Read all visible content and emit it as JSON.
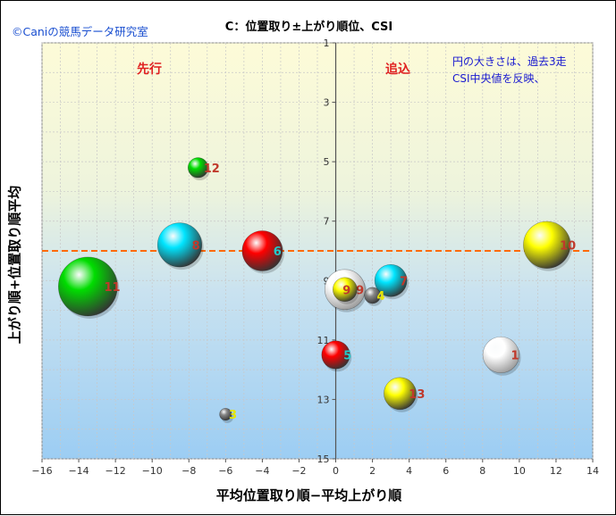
{
  "chart_data": {
    "type": "bubble",
    "title": "C：位置取り±上がり順位、CSI",
    "copyright": "©Caniの競馬データ研究室",
    "xlabel": "平均位置取り順−平均上がり順",
    "ylabel": "上がり順+位置取り順平均",
    "quadrant_left": "先行",
    "quadrant_right": "追込",
    "note_line1": "円の大きさは、過去3走",
    "note_line2": "CSI中央値を反映、",
    "xlim": [
      -16,
      14
    ],
    "ylim": [
      1,
      15
    ],
    "y_reversed": true,
    "reference_y": 8,
    "xticks": [
      -16,
      -14,
      -12,
      -10,
      -8,
      -6,
      -4,
      -2,
      0,
      2,
      4,
      6,
      8,
      10,
      12,
      14
    ],
    "yticks": [
      1,
      3,
      5,
      7,
      9,
      11,
      13,
      15
    ],
    "tick_labels_x": [
      "−16",
      "−14",
      "−12",
      "−10",
      "−8",
      "−6",
      "−4",
      "−2",
      "0",
      "2",
      "4",
      "6",
      "8",
      "10",
      "12",
      "14"
    ],
    "tick_labels_y": [
      "1",
      "3",
      "5",
      "7",
      "9",
      "11",
      "13",
      "15"
    ],
    "grid": true,
    "points": [
      {
        "label": "1",
        "x": 9.0,
        "y": 11.5,
        "size": 2.7,
        "color": "#ffffff",
        "label_color": "#c0392b"
      },
      {
        "label": "3",
        "x": -6.0,
        "y": 13.5,
        "size": 0.9,
        "color": "#888888",
        "label_color": "#e6e600"
      },
      {
        "label": "4",
        "x": 2.0,
        "y": 9.5,
        "size": 1.2,
        "color": "#888888",
        "label_color": "#e6e600"
      },
      {
        "label": "5",
        "x": 0.0,
        "y": 11.5,
        "size": 2.1,
        "color": "#ff0000",
        "label_color": "#22cccc"
      },
      {
        "label": "6",
        "x": -4.0,
        "y": 8.0,
        "size": 3.0,
        "color": "#ff0000",
        "label_color": "#22cccc"
      },
      {
        "label": "7",
        "x": 3.0,
        "y": 9.0,
        "size": 2.4,
        "color": "#00e5ff",
        "label_color": "#c0392b"
      },
      {
        "label": "8",
        "x": -8.5,
        "y": 7.8,
        "size": 3.3,
        "color": "#00e5ff",
        "label_color": "#c0392b"
      },
      {
        "label": "9",
        "x": 0.5,
        "y": 9.3,
        "size": 3.0,
        "color": "#ffffff",
        "label_color": "#c0392b"
      },
      {
        "label": "10",
        "x": 11.5,
        "y": 7.8,
        "size": 3.5,
        "color": "#ffff00",
        "label_color": "#c0392b"
      },
      {
        "label": "11",
        "x": -13.5,
        "y": 9.2,
        "size": 4.4,
        "color": "#00dd00",
        "label_color": "#c0392b"
      },
      {
        "label": "12",
        "x": -7.5,
        "y": 5.2,
        "size": 1.5,
        "color": "#00dd00",
        "label_color": "#c0392b"
      },
      {
        "label": "13",
        "x": 3.5,
        "y": 12.8,
        "size": 2.4,
        "color": "#ffff00",
        "label_color": "#c0392b"
      },
      {
        "label": "9",
        "x": 0.5,
        "y": 9.3,
        "size": 1.8,
        "color": "#ffff00",
        "label_color": "#c0392b",
        "overlay": true
      }
    ]
  }
}
